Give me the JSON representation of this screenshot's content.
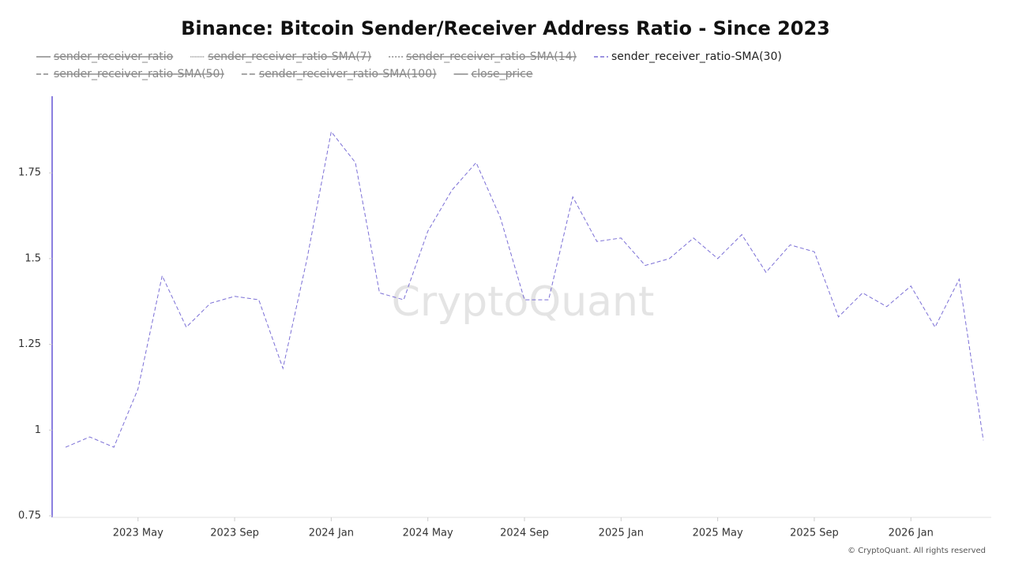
{
  "chart_data": {
    "type": "line",
    "title": "Binance: Bitcoin Sender/Receiver Address Ratio - Since 2023",
    "watermark": "CryptoQuant",
    "footer": "© CryptoQuant. All rights reserved",
    "legend": [
      {
        "name": "sender_receiver_ratio",
        "color": "#888888",
        "dash": "none",
        "hidden": true
      },
      {
        "name": "sender_receiver_ratio-SMA(7)",
        "color": "#888888",
        "dash": "1 1",
        "hidden": true
      },
      {
        "name": "sender_receiver_ratio-SMA(14)",
        "color": "#888888",
        "dash": "2 2",
        "hidden": true
      },
      {
        "name": "sender_receiver_ratio-SMA(30)",
        "color": "#7b6fd6",
        "dash": "5 3",
        "hidden": false
      },
      {
        "name": "sender_receiver_ratio-SMA(50)",
        "color": "#888888",
        "dash": "6 3",
        "hidden": true
      },
      {
        "name": "sender_receiver_ratio-SMA(100)",
        "color": "#888888",
        "dash": "7 3",
        "hidden": true
      },
      {
        "name": "close_price",
        "color": "#888888",
        "dash": "none",
        "hidden": true
      }
    ],
    "x": [
      "2023-02",
      "2023-03",
      "2023-04",
      "2023-05",
      "2023-06",
      "2023-07",
      "2023-08",
      "2023-09",
      "2023-10",
      "2023-11",
      "2023-12",
      "2024-01",
      "2024-02",
      "2024-03",
      "2024-04",
      "2024-05",
      "2024-06",
      "2024-07",
      "2024-08",
      "2024-09",
      "2024-10",
      "2024-11",
      "2024-12",
      "2025-01",
      "2025-02",
      "2025-03",
      "2025-04",
      "2025-05",
      "2025-06",
      "2025-07",
      "2025-08",
      "2025-09",
      "2025-10",
      "2025-11",
      "2025-12",
      "2026-01",
      "2026-02",
      "2026-03",
      "2026-04"
    ],
    "series": [
      {
        "name": "sender_receiver_ratio-SMA(30)",
        "color": "#7b6fd6",
        "values": [
          0.95,
          0.98,
          0.95,
          1.12,
          1.45,
          1.3,
          1.37,
          1.39,
          1.38,
          1.18,
          1.5,
          1.87,
          1.78,
          1.4,
          1.38,
          1.58,
          1.7,
          1.78,
          1.62,
          1.38,
          1.38,
          1.68,
          1.55,
          1.56,
          1.48,
          1.5,
          1.56,
          1.5,
          1.57,
          1.46,
          1.54,
          1.52,
          1.33,
          1.4,
          1.36,
          1.42,
          1.3,
          1.44,
          0.97
        ]
      }
    ],
    "xlim": [
      "2023-02",
      "2026-04"
    ],
    "xticks": [
      {
        "value": "2023-05",
        "label": "2023 May"
      },
      {
        "value": "2023-09",
        "label": "2023 Sep"
      },
      {
        "value": "2024-01",
        "label": "2024 Jan"
      },
      {
        "value": "2024-05",
        "label": "2024 May"
      },
      {
        "value": "2024-09",
        "label": "2024 Sep"
      },
      {
        "value": "2025-01",
        "label": "2025 Jan"
      },
      {
        "value": "2025-05",
        "label": "2025 May"
      },
      {
        "value": "2025-09",
        "label": "2025 Sep"
      },
      {
        "value": "2026-01",
        "label": "2026 Jan"
      }
    ],
    "ylim": [
      0.75,
      2
    ],
    "yticks": [
      0.75,
      1,
      1.25,
      1.5,
      1.75
    ]
  }
}
